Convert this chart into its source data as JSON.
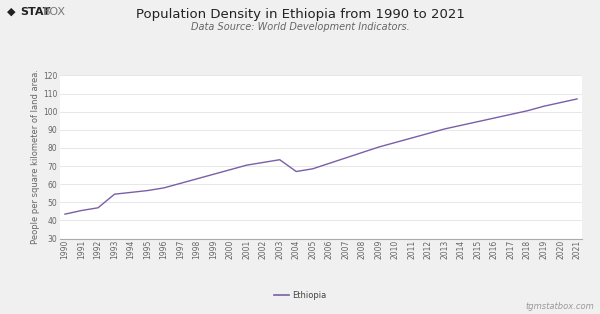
{
  "title": "Population Density in Ethiopia from 1990 to 2021",
  "subtitle": "Data Source: World Development Indicators.",
  "ylabel": "People per square kilometer of land area.",
  "watermark": "tgmstatbox.com",
  "legend_label": "Ethiopia",
  "line_color": "#7b5ea7",
  "background_color": "#f0f0f0",
  "plot_bg_color": "#ffffff",
  "years": [
    1990,
    1991,
    1992,
    1993,
    1994,
    1995,
    1996,
    1997,
    1998,
    1999,
    2000,
    2001,
    2002,
    2003,
    2004,
    2005,
    2006,
    2007,
    2008,
    2009,
    2010,
    2011,
    2012,
    2013,
    2014,
    2015,
    2016,
    2017,
    2018,
    2019,
    2020,
    2021
  ],
  "values": [
    43.5,
    45.5,
    47.0,
    54.5,
    55.5,
    56.5,
    58.0,
    60.5,
    63.0,
    65.5,
    68.0,
    70.5,
    72.0,
    73.5,
    67.0,
    68.5,
    71.5,
    74.5,
    77.5,
    80.5,
    83.0,
    85.5,
    88.0,
    90.5,
    92.5,
    94.5,
    96.5,
    98.5,
    100.5,
    103.0,
    105.0,
    107.0
  ],
  "ylim": [
    30,
    120
  ],
  "yticks": [
    30,
    40,
    50,
    60,
    70,
    80,
    90,
    100,
    110,
    120
  ],
  "title_fontsize": 9.5,
  "subtitle_fontsize": 7,
  "ylabel_fontsize": 6,
  "tick_fontsize": 5.5,
  "legend_fontsize": 6,
  "watermark_fontsize": 6
}
